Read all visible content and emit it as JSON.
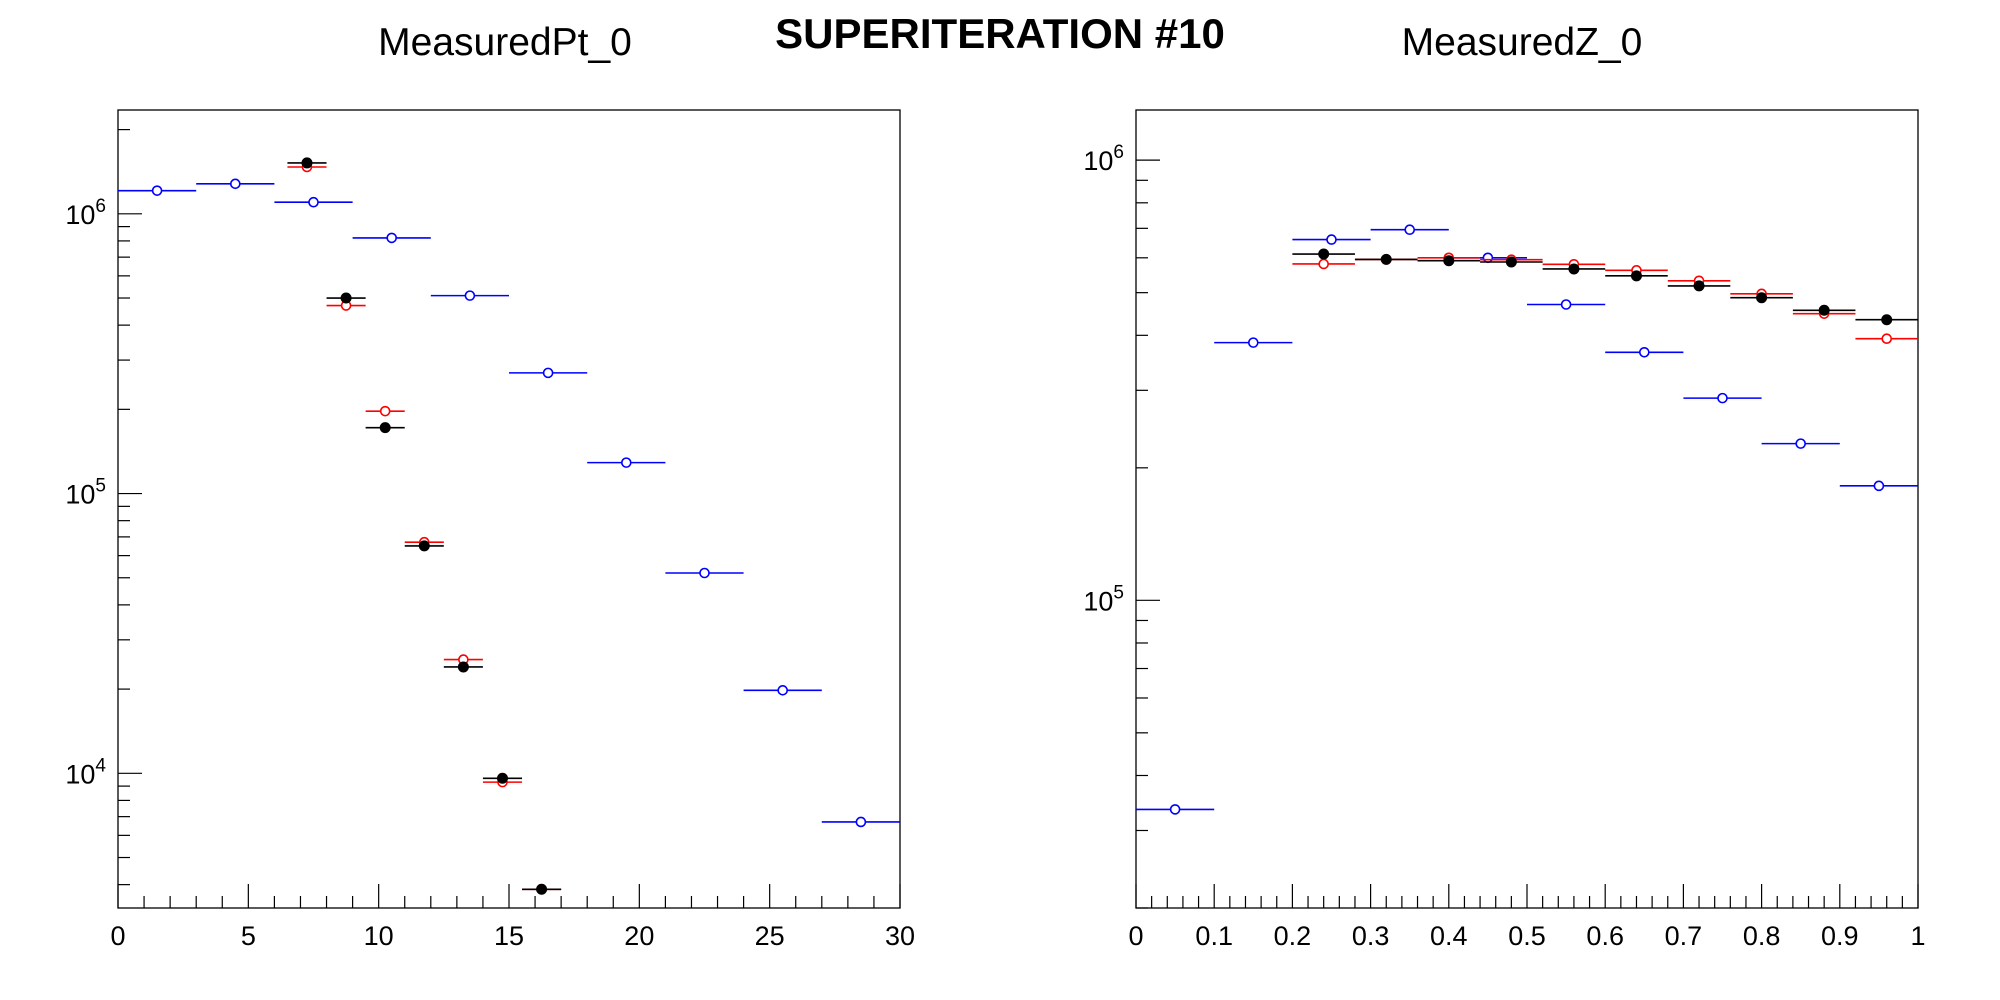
{
  "figure": {
    "title": "SUPERITERATION #10"
  },
  "colors": {
    "black": "#000000",
    "red": "#ff0000",
    "blue": "#0000ff"
  },
  "chart_data": [
    {
      "type": "scatter",
      "title": "MeasuredPt_0",
      "xlabel": "",
      "ylabel": "",
      "xlim": [
        0,
        30
      ],
      "ylim": [
        3300,
        2350000
      ],
      "ylog": true,
      "grid": false,
      "x_ticks": [
        {
          "value": 0,
          "label": "0"
        },
        {
          "value": 5,
          "label": "5"
        },
        {
          "value": 10,
          "label": "10"
        },
        {
          "value": 15,
          "label": "15"
        },
        {
          "value": 20,
          "label": "20"
        },
        {
          "value": 25,
          "label": "25"
        },
        {
          "value": 30,
          "label": "30"
        }
      ],
      "y_ticks": [
        {
          "value": 10000,
          "base": "10",
          "exp": "4"
        },
        {
          "value": 100000,
          "base": "10",
          "exp": "5"
        },
        {
          "value": 1000000,
          "base": "10",
          "exp": "6"
        }
      ],
      "series": [
        {
          "color": "#0000ff",
          "marker": "open-circle",
          "points": [
            {
              "x": 1.5,
              "xerr": 1.5,
              "y": 1210000
            },
            {
              "x": 4.5,
              "xerr": 1.5,
              "y": 1280000
            },
            {
              "x": 7.5,
              "xerr": 1.5,
              "y": 1100000
            },
            {
              "x": 10.5,
              "xerr": 1.5,
              "y": 820000
            },
            {
              "x": 13.5,
              "xerr": 1.5,
              "y": 510000
            },
            {
              "x": 16.5,
              "xerr": 1.5,
              "y": 270000
            },
            {
              "x": 19.5,
              "xerr": 1.5,
              "y": 129000
            },
            {
              "x": 22.5,
              "xerr": 1.5,
              "y": 52000
            },
            {
              "x": 25.5,
              "xerr": 1.5,
              "y": 19800
            },
            {
              "x": 28.5,
              "xerr": 1.5,
              "y": 6700
            }
          ]
        },
        {
          "color": "#ff0000",
          "marker": "open-circle",
          "points": [
            {
              "x": 7.25,
              "xerr": 0.75,
              "y": 1470000
            },
            {
              "x": 8.75,
              "xerr": 0.75,
              "y": 470000
            },
            {
              "x": 10.25,
              "xerr": 0.75,
              "y": 197000
            },
            {
              "x": 11.75,
              "xerr": 0.75,
              "y": 67000
            },
            {
              "x": 13.25,
              "xerr": 0.75,
              "y": 25500
            },
            {
              "x": 14.75,
              "xerr": 0.75,
              "y": 9300
            },
            {
              "x": 16.25,
              "xerr": 0.75,
              "y": 3850
            }
          ]
        },
        {
          "color": "#000000",
          "marker": "filled-circle",
          "points": [
            {
              "x": 7.25,
              "xerr": 0.75,
              "y": 1520000
            },
            {
              "x": 8.75,
              "xerr": 0.75,
              "y": 500000
            },
            {
              "x": 10.25,
              "xerr": 0.75,
              "y": 172000
            },
            {
              "x": 11.75,
              "xerr": 0.75,
              "y": 65000
            },
            {
              "x": 13.25,
              "xerr": 0.75,
              "y": 24000
            },
            {
              "x": 14.75,
              "xerr": 0.75,
              "y": 9600
            },
            {
              "x": 16.25,
              "xerr": 0.75,
              "y": 3850
            }
          ]
        }
      ]
    },
    {
      "type": "scatter",
      "title": "MeasuredZ_0",
      "xlabel": "",
      "ylabel": "",
      "xlim": [
        0,
        1
      ],
      "ylim": [
        20000,
        1300000
      ],
      "ylog": true,
      "grid": false,
      "x_ticks": [
        {
          "value": 0,
          "label": "0"
        },
        {
          "value": 0.1,
          "label": "0.1"
        },
        {
          "value": 0.2,
          "label": "0.2"
        },
        {
          "value": 0.3,
          "label": "0.3"
        },
        {
          "value": 0.4,
          "label": "0.4"
        },
        {
          "value": 0.5,
          "label": "0.5"
        },
        {
          "value": 0.6,
          "label": "0.6"
        },
        {
          "value": 0.7,
          "label": "0.7"
        },
        {
          "value": 0.8,
          "label": "0.8"
        },
        {
          "value": 0.9,
          "label": "0.9"
        },
        {
          "value": 1,
          "label": "1"
        }
      ],
      "y_ticks": [
        {
          "value": 100000,
          "base": "10",
          "exp": "5"
        },
        {
          "value": 1000000,
          "base": "10",
          "exp": "6"
        }
      ],
      "series": [
        {
          "color": "#0000ff",
          "marker": "open-circle",
          "points": [
            {
              "x": 0.05,
              "xerr": 0.05,
              "y": 33500
            },
            {
              "x": 0.15,
              "xerr": 0.05,
              "y": 385000
            },
            {
              "x": 0.25,
              "xerr": 0.05,
              "y": 660000
            },
            {
              "x": 0.35,
              "xerr": 0.05,
              "y": 695000
            },
            {
              "x": 0.45,
              "xerr": 0.05,
              "y": 600000
            },
            {
              "x": 0.55,
              "xerr": 0.05,
              "y": 470000
            },
            {
              "x": 0.65,
              "xerr": 0.05,
              "y": 366000
            },
            {
              "x": 0.75,
              "xerr": 0.05,
              "y": 288000
            },
            {
              "x": 0.85,
              "xerr": 0.05,
              "y": 227000
            },
            {
              "x": 0.95,
              "xerr": 0.05,
              "y": 182000
            }
          ]
        },
        {
          "color": "#ff0000",
          "marker": "open-circle",
          "points": [
            {
              "x": 0.24,
              "xerr": 0.04,
              "y": 581000
            },
            {
              "x": 0.32,
              "xerr": 0.04,
              "y": 595000
            },
            {
              "x": 0.4,
              "xerr": 0.04,
              "y": 600000
            },
            {
              "x": 0.48,
              "xerr": 0.04,
              "y": 594000
            },
            {
              "x": 0.56,
              "xerr": 0.04,
              "y": 580000
            },
            {
              "x": 0.64,
              "xerr": 0.04,
              "y": 562000
            },
            {
              "x": 0.72,
              "xerr": 0.04,
              "y": 532000
            },
            {
              "x": 0.8,
              "xerr": 0.04,
              "y": 497000
            },
            {
              "x": 0.88,
              "xerr": 0.04,
              "y": 448000
            },
            {
              "x": 0.96,
              "xerr": 0.04,
              "y": 393000
            }
          ]
        },
        {
          "color": "#000000",
          "marker": "filled-circle",
          "points": [
            {
              "x": 0.24,
              "xerr": 0.04,
              "y": 612000
            },
            {
              "x": 0.32,
              "xerr": 0.04,
              "y": 595000
            },
            {
              "x": 0.4,
              "xerr": 0.04,
              "y": 591000
            },
            {
              "x": 0.48,
              "xerr": 0.04,
              "y": 587000
            },
            {
              "x": 0.56,
              "xerr": 0.04,
              "y": 566000
            },
            {
              "x": 0.64,
              "xerr": 0.04,
              "y": 546000
            },
            {
              "x": 0.72,
              "xerr": 0.04,
              "y": 518000
            },
            {
              "x": 0.8,
              "xerr": 0.04,
              "y": 487000
            },
            {
              "x": 0.88,
              "xerr": 0.04,
              "y": 456000
            },
            {
              "x": 0.96,
              "xerr": 0.04,
              "y": 434000
            }
          ]
        }
      ]
    }
  ]
}
